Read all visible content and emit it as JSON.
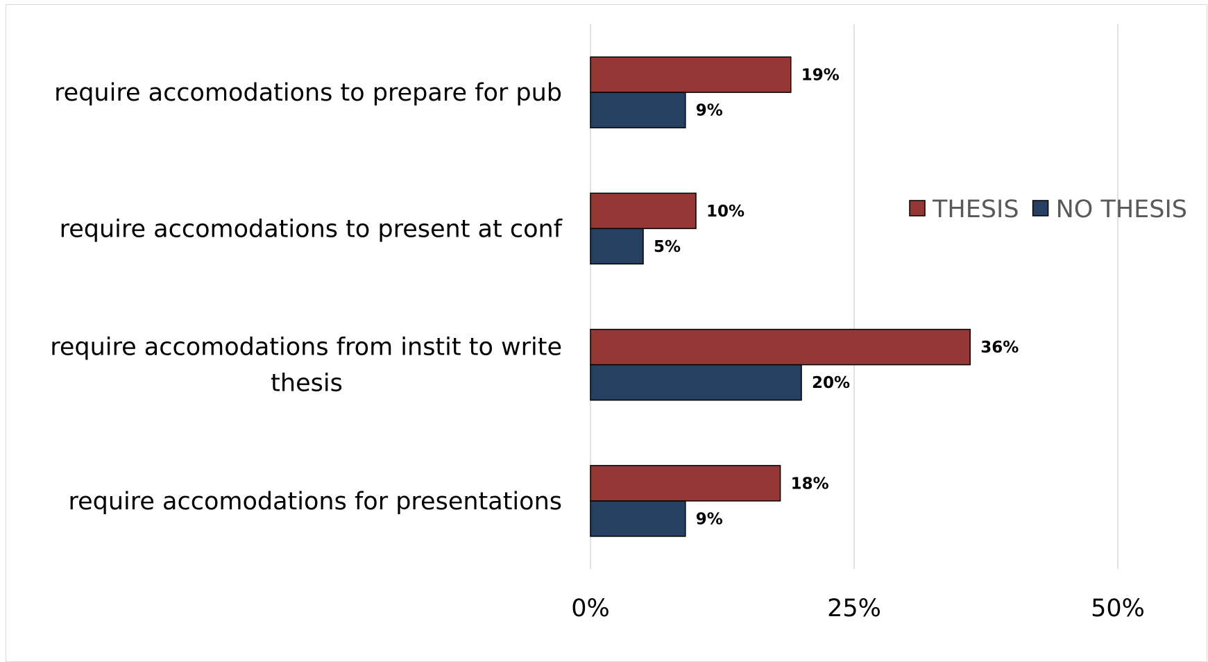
{
  "chart_data": {
    "type": "bar",
    "orientation": "horizontal",
    "categories": [
      "require accomodations to prepare for pub",
      "require accomodations to present at conf",
      "require accomodations from instit to write thesis",
      "require accomodations for presentations"
    ],
    "category_lines": [
      [
        "require accomodations to prepare for pub"
      ],
      [
        "require accomodations to present at conf"
      ],
      [
        "require accomodations from instit to write",
        "thesis"
      ],
      [
        "require accomodations for presentations"
      ]
    ],
    "series": [
      {
        "name": "THESIS",
        "values": [
          19,
          10,
          36,
          18
        ],
        "color": "#953735",
        "labels": [
          "19%",
          "10%",
          "36%",
          "18%"
        ]
      },
      {
        "name": "NO THESIS",
        "values": [
          9,
          5,
          20,
          9
        ],
        "color": "#254061",
        "labels": [
          "9%",
          "5%",
          "20%",
          "9%"
        ]
      }
    ],
    "xlim": [
      0,
      50
    ],
    "x_ticks": [
      0,
      25,
      50
    ],
    "x_tick_labels": [
      "0%",
      "25%",
      "50%"
    ],
    "grid": true,
    "legend_position": "right",
    "title": "",
    "xlabel": "",
    "ylabel": ""
  }
}
